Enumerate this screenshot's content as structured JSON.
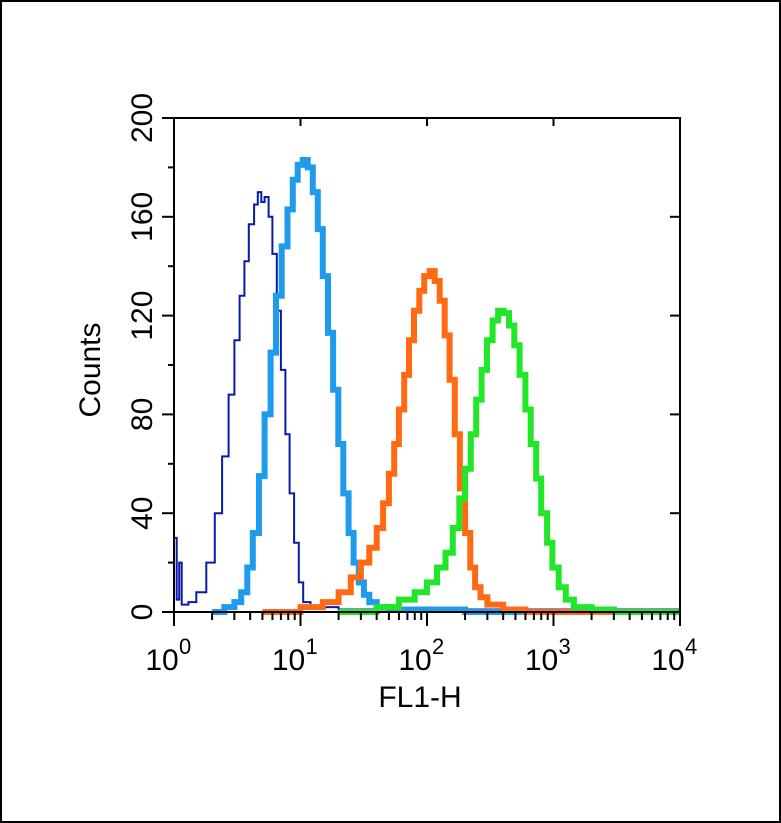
{
  "chart_data": {
    "type": "histogram",
    "xlabel": "FL1-H",
    "ylabel": "Counts",
    "x_scale": "log",
    "xlim": [
      1,
      10000
    ],
    "ylim": [
      0,
      200
    ],
    "x_ticks": [
      {
        "base": "10",
        "exp": "0"
      },
      {
        "base": "10",
        "exp": "1"
      },
      {
        "base": "10",
        "exp": "2"
      },
      {
        "base": "10",
        "exp": "3"
      },
      {
        "base": "10",
        "exp": "4"
      }
    ],
    "y_ticks": [
      "0",
      "40",
      "80",
      "120",
      "160",
      "200"
    ],
    "grid": false,
    "series": [
      {
        "color": "#0a1aa8",
        "stroke_width": 2,
        "points": [
          [
            1.0,
            30
          ],
          [
            1.05,
            5
          ],
          [
            1.1,
            20
          ],
          [
            1.15,
            3
          ],
          [
            1.3,
            4
          ],
          [
            1.5,
            8
          ],
          [
            1.8,
            20
          ],
          [
            2.1,
            40
          ],
          [
            2.4,
            63
          ],
          [
            2.7,
            88
          ],
          [
            3.0,
            110
          ],
          [
            3.3,
            128
          ],
          [
            3.6,
            142
          ],
          [
            3.9,
            157
          ],
          [
            4.3,
            165
          ],
          [
            4.6,
            170
          ],
          [
            4.9,
            166
          ],
          [
            5.2,
            168
          ],
          [
            5.6,
            160
          ],
          [
            6.0,
            145
          ],
          [
            6.5,
            122
          ],
          [
            7.0,
            98
          ],
          [
            7.6,
            72
          ],
          [
            8.2,
            48
          ],
          [
            8.9,
            28
          ],
          [
            9.7,
            12
          ],
          [
            10.5,
            4
          ],
          [
            12,
            2
          ],
          [
            15,
            2
          ],
          [
            20,
            1
          ],
          [
            30,
            1
          ]
        ]
      },
      {
        "color": "#1e9bea",
        "stroke_width": 6,
        "points": [
          [
            2.0,
            0
          ],
          [
            2.5,
            2
          ],
          [
            3.0,
            4
          ],
          [
            3.4,
            8
          ],
          [
            3.8,
            18
          ],
          [
            4.2,
            32
          ],
          [
            4.7,
            55
          ],
          [
            5.2,
            80
          ],
          [
            5.8,
            105
          ],
          [
            6.4,
            128
          ],
          [
            7.1,
            148
          ],
          [
            7.9,
            163
          ],
          [
            8.7,
            175
          ],
          [
            9.5,
            181
          ],
          [
            10.4,
            183
          ],
          [
            11.4,
            180
          ],
          [
            12.5,
            170
          ],
          [
            13.7,
            155
          ],
          [
            15.0,
            136
          ],
          [
            16.5,
            113
          ],
          [
            18.1,
            90
          ],
          [
            19.9,
            68
          ],
          [
            21.8,
            48
          ],
          [
            24.0,
            32
          ],
          [
            26.3,
            20
          ],
          [
            28.9,
            12
          ],
          [
            31.7,
            7
          ],
          [
            35,
            4
          ],
          [
            40,
            2
          ],
          [
            50,
            1
          ],
          [
            60,
            1
          ],
          [
            100,
            1
          ],
          [
            200,
            0
          ]
        ]
      },
      {
        "color": "#ff6a13",
        "stroke_width": 6,
        "points": [
          [
            5,
            0
          ],
          [
            10,
            2
          ],
          [
            15,
            4
          ],
          [
            20,
            8
          ],
          [
            25,
            14
          ],
          [
            30,
            20
          ],
          [
            35,
            26
          ],
          [
            40,
            34
          ],
          [
            45,
            44
          ],
          [
            50,
            56
          ],
          [
            55,
            68
          ],
          [
            60,
            82
          ],
          [
            66,
            96
          ],
          [
            72,
            110
          ],
          [
            79,
            122
          ],
          [
            87,
            130
          ],
          [
            95,
            136
          ],
          [
            105,
            138
          ],
          [
            115,
            134
          ],
          [
            126,
            126
          ],
          [
            138,
            112
          ],
          [
            151,
            94
          ],
          [
            166,
            72
          ],
          [
            182,
            50
          ],
          [
            200,
            32
          ],
          [
            220,
            18
          ],
          [
            240,
            10
          ],
          [
            265,
            6
          ],
          [
            300,
            3
          ],
          [
            400,
            1
          ],
          [
            600,
            0
          ],
          [
            1000,
            0
          ]
        ]
      },
      {
        "color": "#22e62a",
        "stroke_width": 6,
        "points": [
          [
            20,
            0
          ],
          [
            40,
            2
          ],
          [
            60,
            5
          ],
          [
            80,
            8
          ],
          [
            100,
            12
          ],
          [
            120,
            18
          ],
          [
            140,
            24
          ],
          [
            160,
            34
          ],
          [
            180,
            46
          ],
          [
            200,
            58
          ],
          [
            222,
            72
          ],
          [
            245,
            86
          ],
          [
            270,
            98
          ],
          [
            298,
            110
          ],
          [
            330,
            118
          ],
          [
            365,
            122
          ],
          [
            403,
            121
          ],
          [
            445,
            116
          ],
          [
            490,
            108
          ],
          [
            540,
            96
          ],
          [
            600,
            82
          ],
          [
            660,
            68
          ],
          [
            730,
            54
          ],
          [
            800,
            40
          ],
          [
            890,
            28
          ],
          [
            980,
            18
          ],
          [
            1100,
            10
          ],
          [
            1250,
            5
          ],
          [
            1450,
            2
          ],
          [
            2000,
            1
          ],
          [
            3000,
            0
          ],
          [
            10000,
            0
          ]
        ]
      }
    ]
  }
}
